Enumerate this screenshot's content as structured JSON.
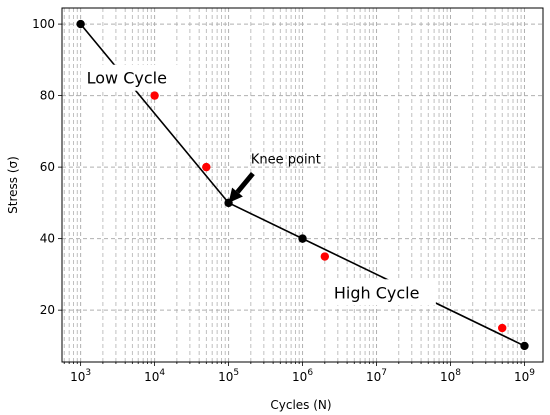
{
  "chart_data": {
    "type": "line",
    "xlabel": "Cycles (N)",
    "ylabel": "Stress (σ)",
    "xscale": "log",
    "xlim": [
      560,
      1780000000
    ],
    "ylim": [
      5.5,
      104.5
    ],
    "grid": "major and minor, dashed",
    "x_ticks": [
      {
        "value": 1000,
        "base": "10",
        "exp": "3"
      },
      {
        "value": 10000,
        "base": "10",
        "exp": "4"
      },
      {
        "value": 100000,
        "base": "10",
        "exp": "5"
      },
      {
        "value": 1000000,
        "base": "10",
        "exp": "6"
      },
      {
        "value": 10000000,
        "base": "10",
        "exp": "7"
      },
      {
        "value": 100000000,
        "base": "10",
        "exp": "8"
      },
      {
        "value": 1000000000,
        "base": "10",
        "exp": "9"
      }
    ],
    "y_ticks": [
      20,
      40,
      60,
      80,
      100
    ],
    "series": [
      {
        "kind": "line",
        "color": "#000000",
        "marker_color": "#000000",
        "points": [
          {
            "x": 1000,
            "y": 100
          },
          {
            "x": 100000,
            "y": 50
          },
          {
            "x": 1000000,
            "y": 40
          },
          {
            "x": 1000000000,
            "y": 10
          }
        ]
      },
      {
        "kind": "scatter",
        "color": "#ff0000",
        "points": [
          {
            "x": 10000,
            "y": 80
          },
          {
            "x": 50000,
            "y": 60
          },
          {
            "x": 2000000,
            "y": 35
          },
          {
            "x": 500000000,
            "y": 15
          }
        ]
      }
    ],
    "annotations": [
      {
        "id": "low-cycle",
        "text": "Low Cycle",
        "x": 1000,
        "y": 85,
        "boxed": true
      },
      {
        "id": "high-cycle",
        "text": "High Cycle",
        "x": 2200000,
        "y": 25,
        "boxed": true
      },
      {
        "id": "knee",
        "text": "Knee point",
        "x": 200000,
        "y": 61,
        "arrow_to": {
          "x": 100000,
          "y": 50
        }
      }
    ]
  }
}
